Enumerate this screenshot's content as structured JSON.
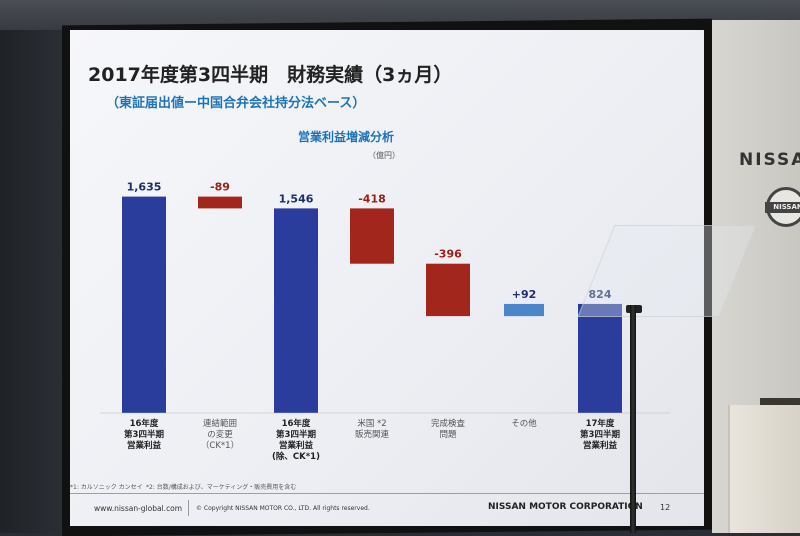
{
  "slide": {
    "title": "2017年度第3四半期　財務実績（3ヵ月）",
    "subtitle": "（東証届出値ー中国合弁会社持分法ベース）",
    "chart_title": "営業利益増減分析",
    "unit": "（億円）",
    "footnote1": "*1: カルソニック カンセイ",
    "footnote2": "*2: 台数/構成および、マーケティング・販売費用を含む",
    "footer_url": "www.nissan-global.com",
    "footer_copyright": "© Copyright NISSAN MOTOR CO., LTD. All rights reserved.",
    "footer_corp": "NISSAN MOTOR CORPORATION",
    "page_number": "12"
  },
  "room": {
    "wall_sign": "NISSAN",
    "badge_text": "NISSAN"
  },
  "colors": {
    "total_bar": "#2b3d9c",
    "negative_bar": "#a3261c",
    "positive_bar": "#4a86c8",
    "label_total": "#1c2e6e",
    "label_negative": "#9a1f14"
  },
  "chart_data": {
    "type": "bar",
    "subtype": "waterfall",
    "title": "営業利益増減分析",
    "unit": "（億円）",
    "categories": [
      [
        "16年度",
        "第3四半期",
        "営業利益"
      ],
      [
        "連結範囲",
        "の変更",
        "（CK*1）"
      ],
      [
        "16年度",
        "第3四半期",
        "営業利益",
        "(除、CK*1)"
      ],
      [
        "米国 *2",
        "販売関連"
      ],
      [
        "完成検査",
        "問題"
      ],
      [
        "その他"
      ],
      [
        "17年度",
        "第3四半期",
        "営業利益"
      ]
    ],
    "values": [
      1635,
      -89,
      1546,
      -418,
      -396,
      92,
      824
    ],
    "labels": [
      "1,635",
      "-89",
      "1,546",
      "-418",
      "-396",
      "+92",
      "824"
    ],
    "kinds": [
      "total",
      "negative",
      "total",
      "negative",
      "negative",
      "positive",
      "total"
    ]
  }
}
